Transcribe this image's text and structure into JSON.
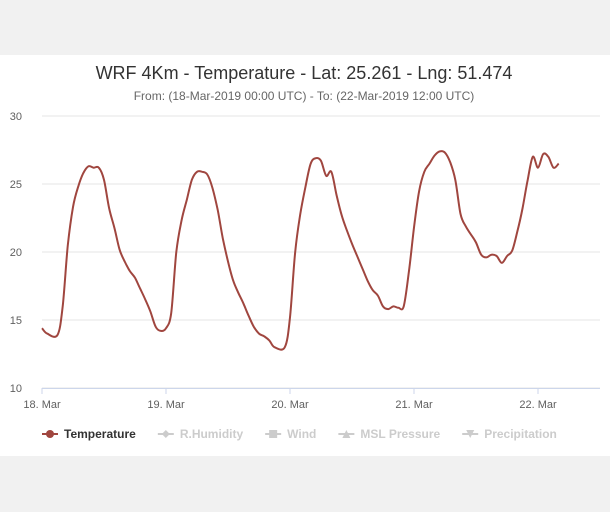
{
  "chart_data": {
    "type": "line",
    "title": "WRF 4Km - Temperature - Lat: 25.261 - Lng: 51.474",
    "subtitle": "From: (18-Mar-2019 00:00 UTC) - To: (22-Mar-2019 12:00 UTC)",
    "xlabel": "",
    "ylabel": "",
    "ylim": [
      10,
      30
    ],
    "yticks": [
      "10",
      "15",
      "20",
      "25",
      "30"
    ],
    "xlim": [
      "2019-03-18 00:00",
      "2019-03-22 12:00"
    ],
    "xticks": [
      {
        "label": "18. Mar",
        "value": "2019-03-18 00:00"
      },
      {
        "label": "19. Mar",
        "value": "2019-03-19 00:00"
      },
      {
        "label": "20. Mar",
        "value": "2019-03-20 00:00"
      },
      {
        "label": "21. Mar",
        "value": "2019-03-21 00:00"
      },
      {
        "label": "22. Mar",
        "value": "2019-03-22 00:00"
      }
    ],
    "grid": true,
    "legend_position": "bottom-left",
    "series": [
      {
        "name": "Temperature",
        "color": "#a0463f",
        "visible": true,
        "points": [
          [
            "2019-03-18 00:00",
            14.4
          ],
          [
            "2019-03-18 01:00",
            14.0
          ],
          [
            "2019-03-18 03:00",
            13.9
          ],
          [
            "2019-03-18 04:00",
            16.0
          ],
          [
            "2019-03-18 05:00",
            20.5
          ],
          [
            "2019-03-18 06:00",
            23.3
          ],
          [
            "2019-03-18 07:00",
            24.8
          ],
          [
            "2019-03-18 08:00",
            25.8
          ],
          [
            "2019-03-18 09:00",
            26.3
          ],
          [
            "2019-03-18 10:00",
            26.2
          ],
          [
            "2019-03-18 11:00",
            26.2
          ],
          [
            "2019-03-18 12:00",
            25.3
          ],
          [
            "2019-03-18 13:00",
            23.2
          ],
          [
            "2019-03-18 14:00",
            21.8
          ],
          [
            "2019-03-18 15:00",
            20.2
          ],
          [
            "2019-03-18 16:00",
            19.3
          ],
          [
            "2019-03-18 17:00",
            18.6
          ],
          [
            "2019-03-18 18:00",
            18.1
          ],
          [
            "2019-03-18 19:00",
            17.3
          ],
          [
            "2019-03-18 20:00",
            16.5
          ],
          [
            "2019-03-18 21:00",
            15.6
          ],
          [
            "2019-03-18 22:00",
            14.5
          ],
          [
            "2019-03-18 23:00",
            14.2
          ],
          [
            "2019-03-19 00:00",
            14.4
          ],
          [
            "2019-03-19 01:00",
            15.5
          ],
          [
            "2019-03-19 02:00",
            20.0
          ],
          [
            "2019-03-19 03:00",
            22.3
          ],
          [
            "2019-03-19 04:00",
            23.8
          ],
          [
            "2019-03-19 05:00",
            25.3
          ],
          [
            "2019-03-19 06:00",
            25.9
          ],
          [
            "2019-03-19 07:00",
            25.9
          ],
          [
            "2019-03-19 08:00",
            25.7
          ],
          [
            "2019-03-19 09:00",
            24.7
          ],
          [
            "2019-03-19 10:00",
            23.1
          ],
          [
            "2019-03-19 11:00",
            21.0
          ],
          [
            "2019-03-19 12:00",
            19.3
          ],
          [
            "2019-03-19 13:00",
            17.9
          ],
          [
            "2019-03-19 14:00",
            17.0
          ],
          [
            "2019-03-19 15:00",
            16.2
          ],
          [
            "2019-03-19 16:00",
            15.3
          ],
          [
            "2019-03-19 17:00",
            14.5
          ],
          [
            "2019-03-19 18:00",
            14.0
          ],
          [
            "2019-03-19 19:00",
            13.8
          ],
          [
            "2019-03-19 20:00",
            13.5
          ],
          [
            "2019-03-19 21:00",
            13.0
          ],
          [
            "2019-03-19 23:00",
            13.0
          ],
          [
            "2019-03-20 00:00",
            15.2
          ],
          [
            "2019-03-20 01:00",
            20.0
          ],
          [
            "2019-03-20 02:00",
            22.8
          ],
          [
            "2019-03-20 03:00",
            24.8
          ],
          [
            "2019-03-20 04:00",
            26.5
          ],
          [
            "2019-03-20 05:00",
            26.9
          ],
          [
            "2019-03-20 06:00",
            26.7
          ],
          [
            "2019-03-20 07:00",
            25.6
          ],
          [
            "2019-03-20 08:00",
            25.9
          ],
          [
            "2019-03-20 09:00",
            24.2
          ],
          [
            "2019-03-20 10:00",
            22.7
          ],
          [
            "2019-03-20 11:00",
            21.6
          ],
          [
            "2019-03-20 12:00",
            20.6
          ],
          [
            "2019-03-20 13:00",
            19.7
          ],
          [
            "2019-03-20 14:00",
            18.8
          ],
          [
            "2019-03-20 15:00",
            17.9
          ],
          [
            "2019-03-20 16:00",
            17.2
          ],
          [
            "2019-03-20 17:00",
            16.8
          ],
          [
            "2019-03-20 18:00",
            16.0
          ],
          [
            "2019-03-20 19:00",
            15.8
          ],
          [
            "2019-03-20 20:00",
            16.0
          ],
          [
            "2019-03-20 21:00",
            15.9
          ],
          [
            "2019-03-20 22:00",
            16.0
          ],
          [
            "2019-03-20 23:00",
            18.5
          ],
          [
            "2019-03-21 00:00",
            21.8
          ],
          [
            "2019-03-21 01:00",
            24.5
          ],
          [
            "2019-03-21 02:00",
            25.9
          ],
          [
            "2019-03-21 03:00",
            26.5
          ],
          [
            "2019-03-21 04:00",
            27.1
          ],
          [
            "2019-03-21 05:00",
            27.4
          ],
          [
            "2019-03-21 06:00",
            27.3
          ],
          [
            "2019-03-21 07:00",
            26.6
          ],
          [
            "2019-03-21 08:00",
            25.3
          ],
          [
            "2019-03-21 09:00",
            22.8
          ],
          [
            "2019-03-21 10:00",
            21.9
          ],
          [
            "2019-03-21 11:00",
            21.3
          ],
          [
            "2019-03-21 12:00",
            20.7
          ],
          [
            "2019-03-21 13:00",
            19.8
          ],
          [
            "2019-03-21 14:00",
            19.6
          ],
          [
            "2019-03-21 15:00",
            19.8
          ],
          [
            "2019-03-21 16:00",
            19.7
          ],
          [
            "2019-03-21 17:00",
            19.2
          ],
          [
            "2019-03-21 18:00",
            19.7
          ],
          [
            "2019-03-21 19:00",
            20.1
          ],
          [
            "2019-03-21 20:00",
            21.5
          ],
          [
            "2019-03-21 21:00",
            23.2
          ],
          [
            "2019-03-21 22:00",
            25.3
          ],
          [
            "2019-03-21 23:00",
            27.0
          ],
          [
            "2019-03-22 00:00",
            26.2
          ],
          [
            "2019-03-22 01:00",
            27.2
          ],
          [
            "2019-03-22 02:00",
            27.0
          ],
          [
            "2019-03-22 03:00",
            26.2
          ],
          [
            "2019-03-22 04:00",
            26.5
          ]
        ]
      },
      {
        "name": "R.Humidity",
        "visible": false
      },
      {
        "name": "Wind",
        "visible": false
      },
      {
        "name": "MSL Pressure",
        "visible": false
      },
      {
        "name": "Precipitation",
        "visible": false
      }
    ],
    "colors": {
      "line": "#a0463f",
      "grid": "#e6e6e6",
      "legend_active": "#333333",
      "legend_inactive": "#cccccc"
    }
  }
}
